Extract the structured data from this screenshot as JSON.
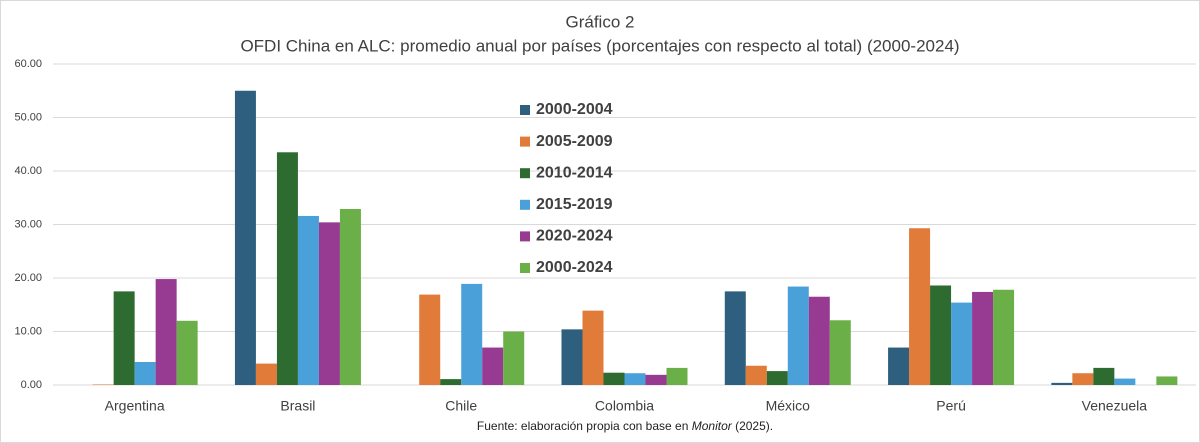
{
  "chart_data": {
    "type": "bar",
    "title": "Gráfico 2",
    "subtitle": "OFDI China en ALC: promedio anual por países (porcentajes con respecto al total) (2000-2024)",
    "source": {
      "before": "Fuente: elaboración propia con base en ",
      "italic": "Monitor",
      "after": " (2025)."
    },
    "categories": [
      "Argentina",
      "Brasil",
      "Chile",
      "Colombia",
      "México",
      "Perú",
      "Venezuela"
    ],
    "series": [
      {
        "name": "2000-2004",
        "color": "#2e5f7f",
        "values": [
          0,
          55.0,
          0,
          10.4,
          17.5,
          7.0,
          0.4
        ]
      },
      {
        "name": "2005-2009",
        "color": "#e07b39",
        "values": [
          0.1,
          4.0,
          16.9,
          13.9,
          3.6,
          29.3,
          2.2
        ]
      },
      {
        "name": "2010-2014",
        "color": "#2e6b30",
        "values": [
          17.5,
          43.5,
          1.1,
          2.3,
          2.6,
          18.6,
          3.2
        ]
      },
      {
        "name": "2015-2019",
        "color": "#4aa0d8",
        "values": [
          4.3,
          31.6,
          18.9,
          2.2,
          18.4,
          15.4,
          1.2
        ]
      },
      {
        "name": "2020-2024",
        "color": "#963a92",
        "values": [
          19.8,
          30.4,
          7.0,
          1.9,
          16.5,
          17.4,
          0
        ]
      },
      {
        "name": "2000-2024",
        "color": "#6aaf47",
        "values": [
          12.0,
          32.9,
          10.0,
          3.2,
          12.1,
          17.8,
          1.6
        ]
      }
    ],
    "ylim": [
      0,
      60
    ],
    "yticks": [
      {
        "value": 0,
        "label": "0.00"
      },
      {
        "value": 10,
        "label": "10.00"
      },
      {
        "value": 20,
        "label": "20.00"
      },
      {
        "value": 30,
        "label": "30.00"
      },
      {
        "value": 40,
        "label": "40.00"
      },
      {
        "value": 50,
        "label": "50.00"
      },
      {
        "value": 60,
        "label": "60.00"
      }
    ],
    "grid": true
  }
}
